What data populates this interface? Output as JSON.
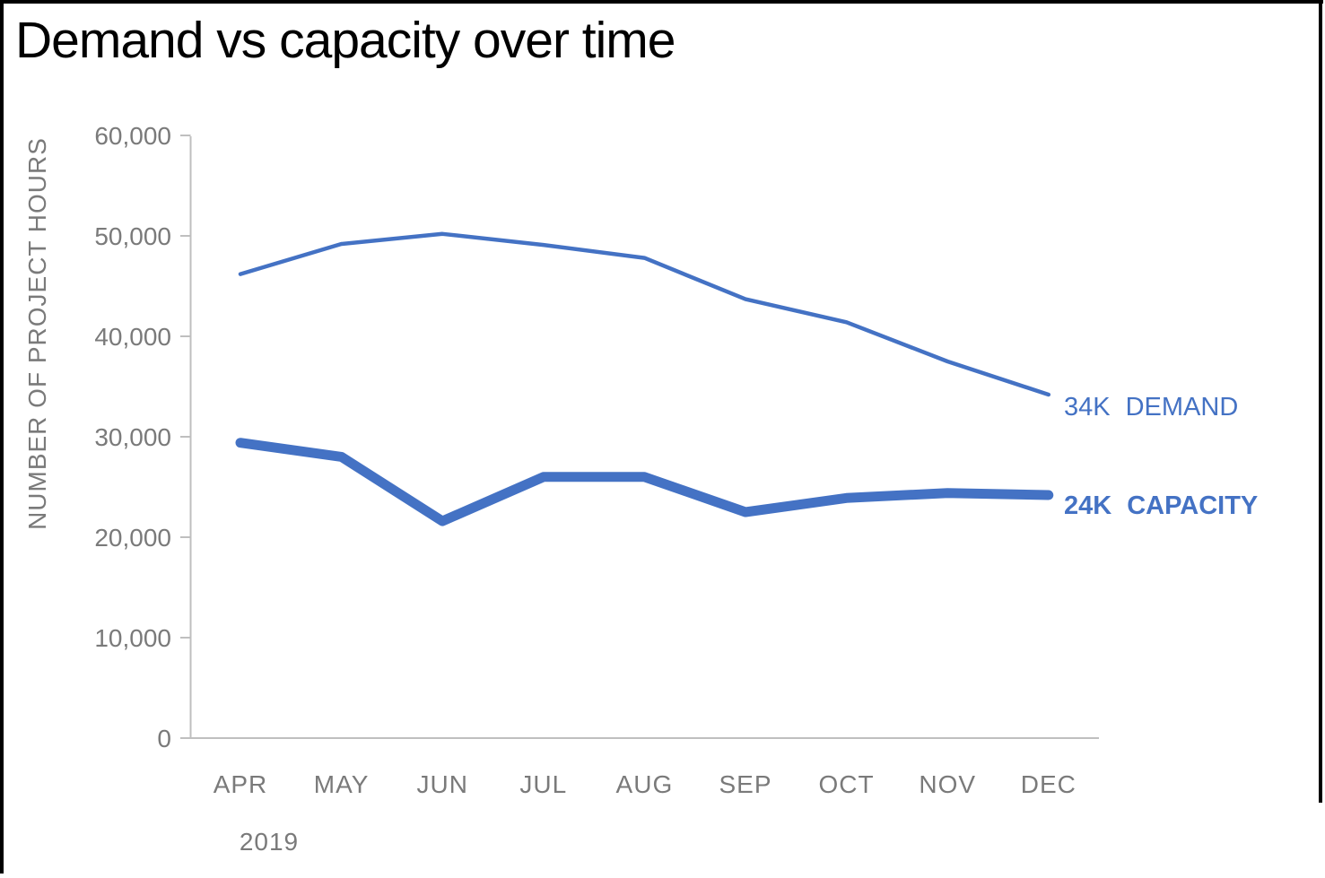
{
  "chart_data": {
    "type": "line",
    "title": "Demand vs capacity over time",
    "xlabel": "",
    "ylabel": "NUMBER OF PROJECT HOURS",
    "x_year_label": "2019",
    "categories": [
      "APR",
      "MAY",
      "JUN",
      "JUL",
      "AUG",
      "SEP",
      "OCT",
      "NOV",
      "DEC"
    ],
    "ylim": [
      0,
      60000
    ],
    "y_ticks": [
      0,
      10000,
      20000,
      30000,
      40000,
      50000,
      60000
    ],
    "y_tick_labels": [
      "0",
      "10,000",
      "20,000",
      "30,000",
      "40,000",
      "50,000",
      "60,000"
    ],
    "grid": false,
    "legend_position": "end-of-line-labels",
    "series": [
      {
        "name": "DEMAND",
        "end_value_label": "34K",
        "line_style": "thin",
        "values": [
          46200,
          49200,
          50200,
          49100,
          47800,
          43700,
          41400,
          37500,
          34200
        ]
      },
      {
        "name": "CAPACITY",
        "end_value_label": "24K",
        "line_style": "thick",
        "values": [
          29400,
          28000,
          21600,
          26000,
          26000,
          22500,
          23900,
          24400,
          24200
        ]
      }
    ],
    "colors": {
      "series_blue": "#4472C4",
      "axis_line_gray": "#BFBFBF",
      "tick_label_gray": "#7A7A7A",
      "title_black": "#000000"
    }
  }
}
